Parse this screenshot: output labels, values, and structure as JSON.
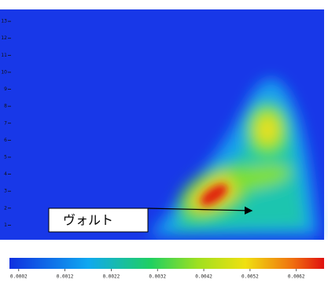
{
  "chart_data": {
    "type": "heatmap",
    "ylim": [
      0,
      13.7
    ],
    "yticks": [
      1,
      2,
      3,
      4,
      5,
      6,
      7,
      8,
      9,
      10,
      11,
      12,
      13
    ],
    "colorbar": {
      "lim": [
        0,
        0.0068
      ],
      "ticks": [
        0.0002,
        0.0012,
        0.0022,
        0.0032,
        0.0042,
        0.0052,
        0.0062
      ]
    },
    "annotation": "ヴォルト"
  }
}
